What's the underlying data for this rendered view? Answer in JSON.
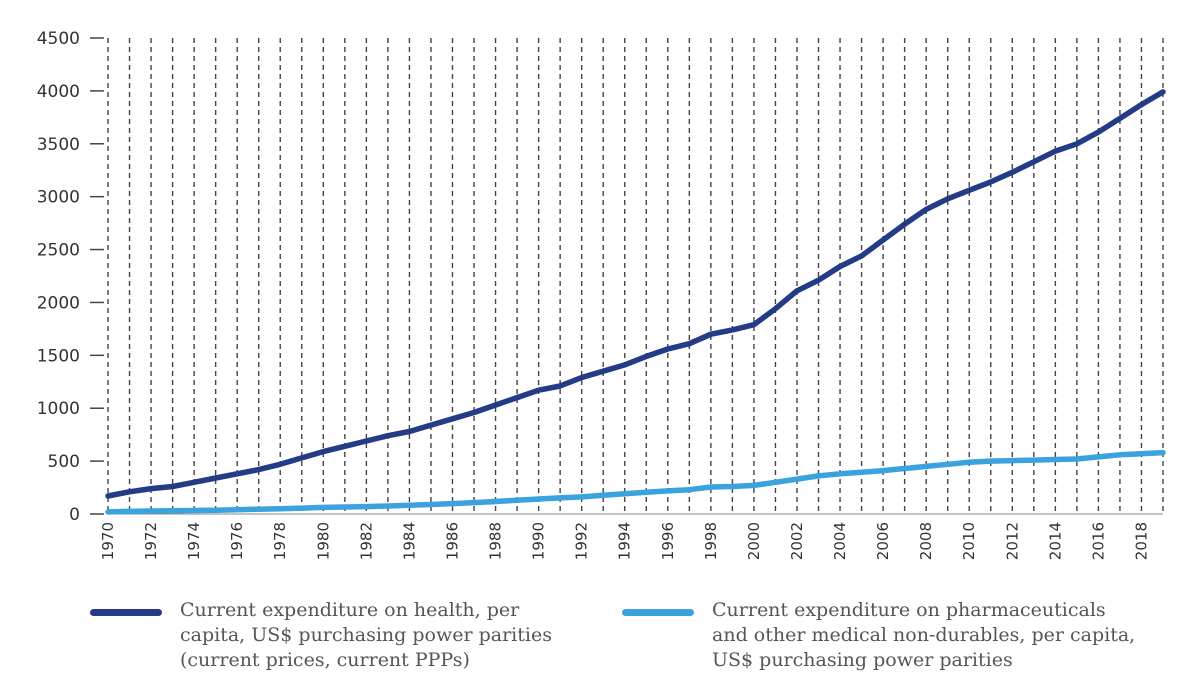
{
  "chart_data": {
    "type": "line",
    "x": [
      1970,
      1971,
      1972,
      1973,
      1974,
      1975,
      1976,
      1977,
      1978,
      1979,
      1980,
      1981,
      1982,
      1983,
      1984,
      1985,
      1986,
      1987,
      1988,
      1989,
      1990,
      1991,
      1992,
      1993,
      1994,
      1995,
      1996,
      1997,
      1998,
      1999,
      2000,
      2001,
      2002,
      2003,
      2004,
      2005,
      2006,
      2007,
      2008,
      2009,
      2010,
      2011,
      2012,
      2013,
      2014,
      2015,
      2016,
      2017,
      2018,
      2019
    ],
    "x_tick_labels": [
      "1970",
      "1972",
      "1974",
      "1976",
      "1978",
      "1980",
      "1982",
      "1984",
      "1986",
      "1988",
      "1990",
      "1992",
      "1994",
      "1996",
      "1998",
      "2000",
      "2002",
      "2004",
      "2006",
      "2008",
      "2010",
      "2012",
      "2014",
      "2016",
      "2018"
    ],
    "y_ticks": [
      0,
      500,
      1000,
      1500,
      2000,
      2500,
      3000,
      3500,
      4000,
      4500
    ],
    "ylim": [
      0,
      4500
    ],
    "xlim": [
      1970,
      2019
    ],
    "grid": "vertical dashed",
    "series": [
      {
        "name": "Current expenditure on health, per capita, US$ purchasing power parities (current prices, current PPPs)",
        "color": "#243b85",
        "values": [
          170,
          210,
          240,
          260,
          300,
          340,
          380,
          420,
          470,
          530,
          590,
          640,
          690,
          740,
          780,
          840,
          900,
          960,
          1030,
          1100,
          1170,
          1210,
          1290,
          1350,
          1410,
          1490,
          1560,
          1610,
          1700,
          1740,
          1790,
          1940,
          2110,
          2210,
          2340,
          2440,
          2590,
          2740,
          2880,
          2980,
          3060,
          3140,
          3230,
          3330,
          3430,
          3500,
          3610,
          3740,
          3870,
          3990
        ]
      },
      {
        "name": "Current expenditure on pharmaceuticals and other medical non-durables, per capita, US$ purchasing power parities",
        "color": "#3aa3dd",
        "values": [
          20,
          25,
          28,
          30,
          33,
          36,
          40,
          45,
          50,
          56,
          62,
          66,
          70,
          76,
          82,
          90,
          98,
          108,
          118,
          130,
          142,
          152,
          162,
          178,
          192,
          205,
          218,
          230,
          255,
          260,
          270,
          300,
          330,
          360,
          380,
          395,
          410,
          430,
          450,
          470,
          490,
          500,
          505,
          510,
          515,
          520,
          540,
          560,
          570,
          580
        ]
      }
    ]
  },
  "legend": [
    {
      "label": "Current expenditure on health, per\ncapita, US$ purchasing power parities\n(current prices, current PPPs)",
      "color": "#243b85"
    },
    {
      "label": "Current expenditure on pharmaceuticals\nand other medical non-durables, per capita,\nUS$ purchasing power parities",
      "color": "#3aa3dd"
    }
  ]
}
